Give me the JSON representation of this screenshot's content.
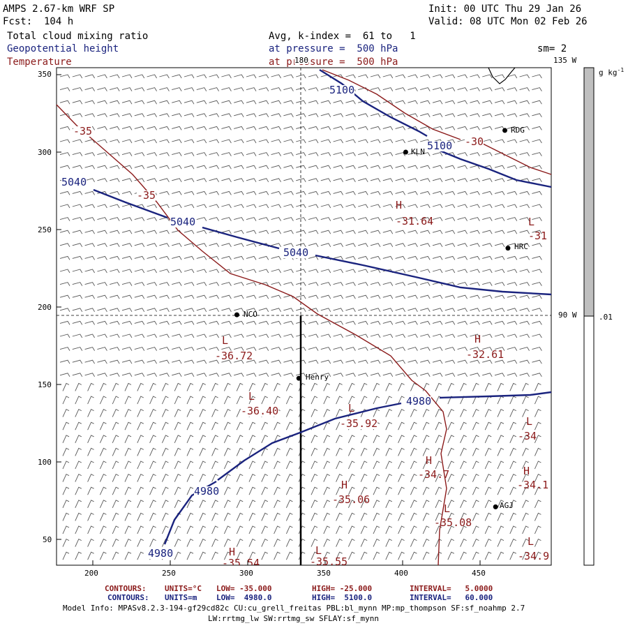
{
  "header": {
    "model": "AMPS 2.67-km WRF SP",
    "forecast": "Fcst:  104 h",
    "init": "Init: 00 UTC Thu 29 Jan 26",
    "valid": "Valid: 08 UTC Mon 02 Feb 26",
    "field1": "Total cloud mixing ratio",
    "field2": "Geopotential height",
    "field3": "Temperature",
    "avg": "Avg, k-index =  61 to   1",
    "pressure1": "at pressure =  500 hPa",
    "pressure2": "at pressure =  500 hPa",
    "smooth": "sm= 2"
  },
  "colorbar": {
    "units": "g kg",
    "units_exp": "-1",
    "tick": ".01",
    "fill_fraction": 0.98
  },
  "colors": {
    "height_contour": "#1a237e",
    "temperature_contour": "#8b1a1a",
    "colorbar_gray": "#bfbfbf",
    "coast": "#000000"
  },
  "axes": {
    "x_ticks": [
      "200",
      "250",
      "300",
      "350",
      "400",
      "450"
    ],
    "y_ticks": [
      "350",
      "300",
      "250",
      "200",
      "150",
      "100",
      "50"
    ]
  },
  "meridian_labels": {
    "lon180": "180",
    "lon135w": "135 W",
    "lon90w": "90 W"
  },
  "stations": [
    {
      "name": "RDG",
      "x": 466,
      "y": 314
    },
    {
      "name": "KLN",
      "x": 402,
      "y": 300
    },
    {
      "name": "HRC",
      "x": 468,
      "y": 238
    },
    {
      "name": "NCO",
      "x": 293,
      "y": 195
    },
    {
      "name": "Henry",
      "x": 333,
      "y": 154
    },
    {
      "name": "AGJ",
      "x": 460,
      "y": 71
    }
  ],
  "height_labels": [
    "5100",
    "5100",
    "5040",
    "5040",
    "5040",
    "4980",
    "4980",
    "4980"
  ],
  "temperature_labels": {
    "contours": [
      "-35",
      "-35",
      "-30"
    ],
    "extrema": [
      {
        "type": "H",
        "value": "-31.64"
      },
      {
        "type": "L",
        "value": "-31"
      },
      {
        "type": "L",
        "value": "-36.72"
      },
      {
        "type": "H",
        "value": "-32.61"
      },
      {
        "type": "L",
        "value": "-36.40"
      },
      {
        "type": "L",
        "value": "-35.92"
      },
      {
        "type": "L",
        "value": "-34"
      },
      {
        "type": "H",
        "value": "-34.7"
      },
      {
        "type": "H",
        "value": "-34.1"
      },
      {
        "type": "H",
        "value": "-35.06"
      },
      {
        "type": "L",
        "value": "-35.08"
      },
      {
        "type": "L",
        "value": "-34.9"
      },
      {
        "type": "H",
        "value": "-35.54"
      },
      {
        "type": "L",
        "value": "-35.55"
      }
    ]
  },
  "footer": {
    "temp_contours_label": "CONTOURS:",
    "temp_units": "UNITS=°C",
    "temp_low": "LOW= -35.000",
    "temp_high": "HIGH= -25.000",
    "temp_interval": "INTERVAL=   5.0000",
    "hgt_contours_label": "CONTOURS:",
    "hgt_units": "UNITS=m",
    "hgt_low": "LOW=  4980.0",
    "hgt_high": "HIGH=  5100.0",
    "hgt_interval": "INTERVAL=   60.000",
    "model_info": "Model Info: MPASv8.2.3-194-gf29cd82c CU:cu_grell_freitas PBL:bl_mynn MP:mp_thompson SF:sf_noahmp 2.7",
    "model_info2": "LW:rrtmg_lw SW:rrtmg_sw SFLAY:sf_mynn"
  }
}
